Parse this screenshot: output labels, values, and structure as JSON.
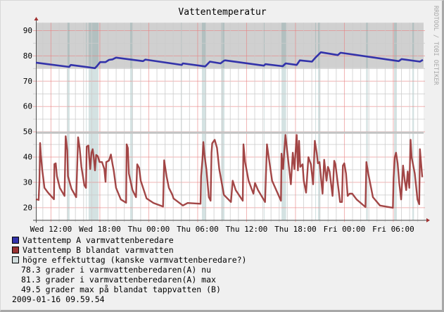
{
  "title": "Vattentemperatur",
  "watermark": "RRDTOOL / TOBI OETIKER",
  "legend": [
    {
      "label": "Vattentemp A varmvattenberedare",
      "color": "#3333aa"
    },
    {
      "label": "Vattentemp B blandat varmvatten",
      "color": "#993333"
    },
    {
      "label": "högre effektuttag (kanske varmvattenberedare?)",
      "color": "#d0dcdc"
    }
  ],
  "comments": [
    "78.3 grader i varmvattenberedaren(A) nu",
    "81.3 grader i varmvattenberedaren(A) max",
    "49.5 grader max på blandat tappvatten (B)"
  ],
  "timestamp": "2009-01-16 09.59.54",
  "chart_data": {
    "type": "line",
    "title": "Vattentemperatur",
    "xlabel": "",
    "ylabel": "",
    "xlim": [
      "Wed 10:09",
      "Fri 09:43"
    ],
    "ylim": [
      15,
      93
    ],
    "yticks": [
      20,
      30,
      40,
      50,
      60,
      70,
      80,
      90
    ],
    "xticks": [
      "Wed 12:00",
      "Wed 18:00",
      "Thu 00:00",
      "Thu 06:00",
      "Thu 12:00",
      "Thu 18:00",
      "Fri 00:00",
      "Fri 06:00"
    ],
    "grid": true,
    "minor_grid": {
      "x_hours": 1,
      "y_step": 5
    },
    "major_grid": {
      "x_hours": 6,
      "y_step": 10
    },
    "colors": {
      "major_grid": "#e88080",
      "minor_grid": "#cccccc",
      "axis": "#505050",
      "arrow": "#a03030",
      "high_band": "#d0d0d0",
      "max_line": "#c4c4c4"
    },
    "high_area_from": 75,
    "max_line": 49.5,
    "bands": [
      [
        "Wed 14:02",
        "Wed 14:17"
      ],
      [
        "Wed 16:18",
        "Wed 16:22"
      ],
      [
        "Wed 16:37",
        "Wed 17:50"
      ],
      [
        "Wed 21:43",
        "Wed 22:02"
      ],
      [
        "Thu 03:56",
        "Thu 04:03"
      ],
      [
        "Thu 06:31",
        "Thu 07:02"
      ],
      [
        "Thu 08:53",
        "Thu 09:17"
      ],
      [
        "Thu 14:07",
        "Thu 14:11"
      ],
      [
        "Thu 16:17",
        "Thu 16:51"
      ],
      [
        "Thu 20:25",
        "Thu 20:31"
      ],
      [
        "Thu 20:46",
        "Thu 21:02"
      ],
      [
        "Fri 02:40",
        "Fri 02:52"
      ],
      [
        "Fri 06:06",
        "Fri 06:26"
      ],
      [
        "Fri 08:20",
        "Fri 08:32"
      ]
    ],
    "series": [
      {
        "name": "Vattentemp A varmvattenberedare",
        "color": "#3333aa",
        "points": [
          [
            "Wed 10:09",
            77.2
          ],
          [
            "Wed 14:14",
            75.5
          ],
          [
            "Wed 14:26",
            76.3
          ],
          [
            "Wed 17:24",
            75.0
          ],
          [
            "Wed 17:41",
            76.0
          ],
          [
            "Wed 18:02",
            77.4
          ],
          [
            "Wed 18:42",
            77.4
          ],
          [
            "Wed 19:07",
            78.3
          ],
          [
            "Wed 19:33",
            78.5
          ],
          [
            "Wed 19:59",
            79.2
          ],
          [
            "Wed 23:18",
            77.8
          ],
          [
            "Wed 23:35",
            78.4
          ],
          [
            "Thu 04:03",
            76.3
          ],
          [
            "Thu 04:11",
            76.9
          ],
          [
            "Thu 06:56",
            75.7
          ],
          [
            "Thu 07:30",
            77.6
          ],
          [
            "Thu 08:48",
            76.9
          ],
          [
            "Thu 09:14",
            78.0
          ],
          [
            "Thu 09:22",
            78.1
          ],
          [
            "Thu 14:07",
            76.0
          ],
          [
            "Thu 14:19",
            76.6
          ],
          [
            "Thu 16:26",
            75.8
          ],
          [
            "Thu 16:48",
            76.9
          ],
          [
            "Thu 18:09",
            76.3
          ],
          [
            "Thu 18:32",
            78.1
          ],
          [
            "Thu 20:01",
            77.6
          ],
          [
            "Thu 20:27",
            79.2
          ],
          [
            "Thu 21:07",
            81.3
          ],
          [
            "Thu 23:11",
            80.2
          ],
          [
            "Thu 23:32",
            81.1
          ],
          [
            "Fri 06:40",
            77.8
          ],
          [
            "Fri 07:01",
            78.6
          ],
          [
            "Fri 09:16",
            77.6
          ],
          [
            "Fri 09:38",
            78.3
          ]
        ]
      },
      {
        "name": "Vattentemp B blandat varmvatten",
        "color": "#993333",
        "points": [
          [
            "Wed 10:09",
            23.2
          ],
          [
            "Wed 10:29",
            22.9
          ],
          [
            "Wed 10:35",
            30.1
          ],
          [
            "Wed 10:40",
            45.4
          ],
          [
            "Wed 10:46",
            40.7
          ],
          [
            "Wed 10:55",
            35.1
          ],
          [
            "Wed 11:12",
            27.7
          ],
          [
            "Wed 11:37",
            25.9
          ],
          [
            "Wed 12:22",
            23.2
          ],
          [
            "Wed 12:25",
            37.1
          ],
          [
            "Wed 12:35",
            37.4
          ],
          [
            "Wed 12:44",
            32.3
          ],
          [
            "Wed 13:05",
            27.7
          ],
          [
            "Wed 13:40",
            24.5
          ],
          [
            "Wed 13:48",
            48.1
          ],
          [
            "Wed 14:00",
            42.6
          ],
          [
            "Wed 14:05",
            32.3
          ],
          [
            "Wed 14:31",
            27.3
          ],
          [
            "Wed 15:06",
            24.0
          ],
          [
            "Wed 15:20",
            47.7
          ],
          [
            "Wed 15:31",
            43.5
          ],
          [
            "Wed 15:44",
            36.0
          ],
          [
            "Wed 16:06",
            28.7
          ],
          [
            "Wed 16:18",
            27.7
          ],
          [
            "Wed 16:23",
            44.0
          ],
          [
            "Wed 16:36",
            44.4
          ],
          [
            "Wed 16:41",
            39.9
          ],
          [
            "Wed 16:49",
            35.1
          ],
          [
            "Wed 16:58",
            41.6
          ],
          [
            "Wed 17:07",
            43.0
          ],
          [
            "Wed 17:15",
            39.9
          ],
          [
            "Wed 17:24",
            34.6
          ],
          [
            "Wed 17:33",
            40.7
          ],
          [
            "Wed 17:45",
            40.2
          ],
          [
            "Wed 17:58",
            37.9
          ],
          [
            "Wed 18:16",
            37.9
          ],
          [
            "Wed 18:33",
            35.1
          ],
          [
            "Wed 18:42",
            30.1
          ],
          [
            "Wed 18:47",
            37.9
          ],
          [
            "Wed 19:07",
            38.5
          ],
          [
            "Wed 19:21",
            40.9
          ],
          [
            "Wed 19:33",
            37.1
          ],
          [
            "Wed 19:42",
            34.6
          ],
          [
            "Wed 19:59",
            27.7
          ],
          [
            "Wed 20:34",
            23.1
          ],
          [
            "Wed 21:13",
            21.8
          ],
          [
            "Wed 21:17",
            44.9
          ],
          [
            "Wed 21:26",
            43.5
          ],
          [
            "Wed 21:34",
            33.3
          ],
          [
            "Wed 22:00",
            26.8
          ],
          [
            "Wed 22:26",
            24.0
          ],
          [
            "Wed 22:35",
            37.0
          ],
          [
            "Wed 22:49",
            35.6
          ],
          [
            "Wed 23:01",
            30.5
          ],
          [
            "Wed 23:44",
            23.5
          ],
          [
            "Thu 00:35",
            21.7
          ],
          [
            "Thu 01:45",
            20.3
          ],
          [
            "Thu 01:53",
            38.6
          ],
          [
            "Thu 02:11",
            32.3
          ],
          [
            "Thu 02:28",
            27.7
          ],
          [
            "Thu 02:54",
            24.9
          ],
          [
            "Thu 03:02",
            23.5
          ],
          [
            "Thu 04:11",
            20.7
          ],
          [
            "Thu 04:46",
            21.7
          ],
          [
            "Thu 06:21",
            21.4
          ],
          [
            "Thu 06:25",
            32.3
          ],
          [
            "Thu 06:35",
            38.8
          ],
          [
            "Thu 06:42",
            45.8
          ],
          [
            "Thu 06:50",
            40.7
          ],
          [
            "Thu 07:04",
            35.1
          ],
          [
            "Thu 07:22",
            24.0
          ],
          [
            "Thu 07:35",
            22.6
          ],
          [
            "Thu 07:42",
            41.6
          ],
          [
            "Thu 07:47",
            45.3
          ],
          [
            "Thu 08:05",
            46.7
          ],
          [
            "Thu 08:22",
            43.5
          ],
          [
            "Thu 08:39",
            35.1
          ],
          [
            "Thu 09:13",
            24.9
          ],
          [
            "Thu 10:05",
            22.1
          ],
          [
            "Thu 10:18",
            30.5
          ],
          [
            "Thu 10:40",
            26.8
          ],
          [
            "Thu 11:32",
            22.6
          ],
          [
            "Thu 11:37",
            44.9
          ],
          [
            "Thu 11:49",
            37.9
          ],
          [
            "Thu 12:15",
            30.5
          ],
          [
            "Thu 12:50",
            25.4
          ],
          [
            "Thu 13:02",
            29.6
          ],
          [
            "Thu 13:24",
            26.8
          ],
          [
            "Thu 14:16",
            22.1
          ],
          [
            "Thu 14:30",
            44.9
          ],
          [
            "Thu 14:42",
            40.2
          ],
          [
            "Thu 15:08",
            30.5
          ],
          [
            "Thu 16:13",
            22.6
          ],
          [
            "Thu 16:17",
            41.2
          ],
          [
            "Thu 16:29",
            35.1
          ],
          [
            "Thu 16:38",
            42.6
          ],
          [
            "Thu 16:46",
            48.6
          ],
          [
            "Thu 17:00",
            41.6
          ],
          [
            "Thu 17:26",
            29.1
          ],
          [
            "Thu 17:40",
            41.6
          ],
          [
            "Thu 17:52",
            35.1
          ],
          [
            "Thu 18:09",
            48.6
          ],
          [
            "Thu 18:18",
            34.6
          ],
          [
            "Thu 18:26",
            46.3
          ],
          [
            "Thu 18:35",
            36.0
          ],
          [
            "Thu 18:52",
            37.0
          ],
          [
            "Thu 19:01",
            30.5
          ],
          [
            "Thu 19:18",
            25.8
          ],
          [
            "Thu 19:35",
            39.8
          ],
          [
            "Thu 19:53",
            37.0
          ],
          [
            "Thu 20:10",
            29.1
          ],
          [
            "Thu 20:22",
            46.3
          ],
          [
            "Thu 20:36",
            41.6
          ],
          [
            "Thu 20:45",
            37.4
          ],
          [
            "Thu 20:57",
            37.9
          ],
          [
            "Thu 21:19",
            25.4
          ],
          [
            "Thu 21:31",
            38.8
          ],
          [
            "Thu 21:48",
            30.5
          ],
          [
            "Thu 21:59",
            36.0
          ],
          [
            "Thu 22:11",
            34.2
          ],
          [
            "Thu 22:33",
            24.5
          ],
          [
            "Thu 22:45",
            38.4
          ],
          [
            "Thu 22:54",
            37.0
          ],
          [
            "Thu 23:28",
            22.1
          ],
          [
            "Thu 23:42",
            22.1
          ],
          [
            "Thu 23:49",
            36.5
          ],
          [
            "Thu 23:59",
            37.4
          ],
          [
            "Fri 00:12",
            33.3
          ],
          [
            "Fri 00:24",
            24.5
          ],
          [
            "Fri 00:38",
            25.4
          ],
          [
            "Fri 00:58",
            25.4
          ],
          [
            "Fri 01:30",
            23.1
          ],
          [
            "Fri 02:35",
            20.1
          ],
          [
            "Fri 02:42",
            37.9
          ],
          [
            "Fri 02:56",
            33.3
          ],
          [
            "Fri 03:30",
            24.0
          ],
          [
            "Fri 04:22",
            20.7
          ],
          [
            "Fri 05:57",
            19.8
          ],
          [
            "Fri 06:02",
            31.4
          ],
          [
            "Fri 06:11",
            39.8
          ],
          [
            "Fri 06:20",
            41.6
          ],
          [
            "Fri 06:32",
            37.4
          ],
          [
            "Fri 06:44",
            29.6
          ],
          [
            "Fri 06:58",
            23.1
          ],
          [
            "Fri 07:12",
            36.5
          ],
          [
            "Fri 07:24",
            30.5
          ],
          [
            "Fri 07:35",
            26.8
          ],
          [
            "Fri 07:46",
            34.2
          ],
          [
            "Fri 07:58",
            27.7
          ],
          [
            "Fri 08:07",
            46.7
          ],
          [
            "Fri 08:15",
            39.8
          ],
          [
            "Fri 08:38",
            33.3
          ],
          [
            "Fri 08:58",
            23.1
          ],
          [
            "Fri 09:11",
            21.2
          ],
          [
            "Fri 09:16",
            43.0
          ],
          [
            "Fri 09:24",
            37.9
          ],
          [
            "Fri 09:33",
            31.9
          ]
        ]
      }
    ]
  }
}
